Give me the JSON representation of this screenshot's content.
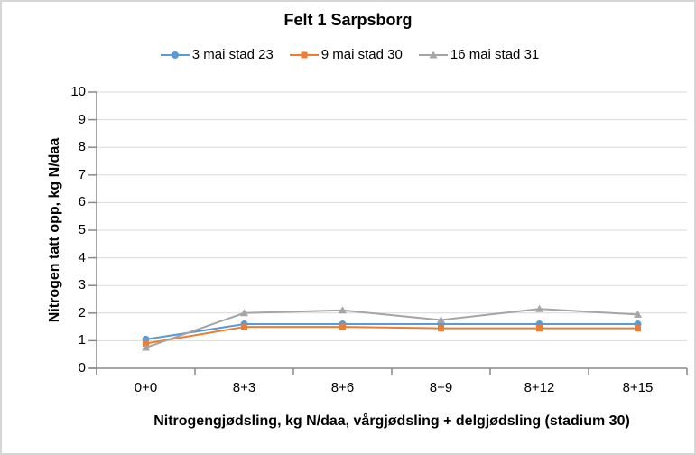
{
  "chart": {
    "title": "Felt 1 Sarpsborg",
    "y_axis_title": "Nitrogen tatt opp, kg N/daa",
    "x_axis_title": "Nitrogengjødsling, kg N/daa, vårgjødsling + delgjødsling (stadium 30)"
  },
  "chart_data": {
    "type": "line",
    "title": "Felt 1 Sarpsborg",
    "xlabel": "Nitrogengjødsling, kg N/daa, vårgjødsling + delgjødsling (stadium 30)",
    "ylabel": "Nitrogen tatt opp, kg N/daa",
    "categories": [
      "0+0",
      "8+3",
      "8+6",
      "8+9",
      "8+12",
      "8+15"
    ],
    "series": [
      {
        "name": "3 mai stad 23",
        "color": "#5B9BD5",
        "marker": "circle",
        "values": [
          1.05,
          1.6,
          1.6,
          1.6,
          1.6,
          1.6
        ]
      },
      {
        "name": "9 mai stad 30",
        "color": "#ED7D31",
        "marker": "square",
        "values": [
          0.9,
          1.5,
          1.5,
          1.45,
          1.45,
          1.45
        ]
      },
      {
        "name": "16 mai stad 31",
        "color": "#A5A5A5",
        "marker": "triangle",
        "values": [
          0.75,
          2.0,
          2.1,
          1.75,
          2.15,
          1.95
        ]
      }
    ],
    "ylim": [
      0,
      10
    ],
    "yticks": [
      0,
      1,
      2,
      3,
      4,
      5,
      6,
      7,
      8,
      9,
      10
    ],
    "grid": true,
    "legend_position": "top"
  },
  "colors": {
    "gridline": "#D9D9D9",
    "axis": "#898989",
    "text": "#000000",
    "panel_border": "#D6D6D6"
  }
}
